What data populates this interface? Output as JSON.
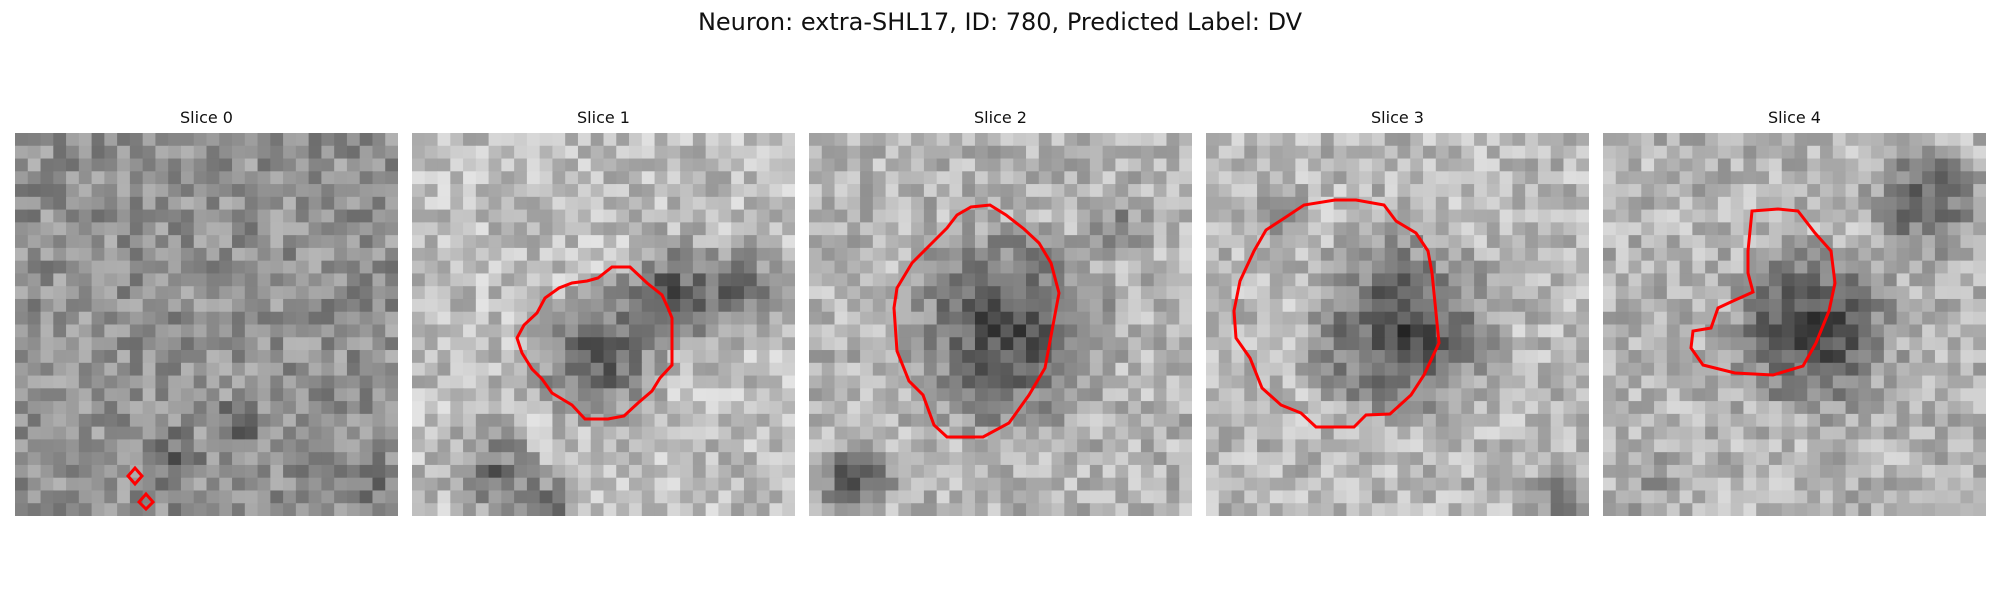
{
  "figure": {
    "title": "Neuron: extra-SHL17, ID: 780, Predicted Label: DV"
  },
  "panels": [
    {
      "title": "Slice 0"
    },
    {
      "title": "Slice 1"
    },
    {
      "title": "Slice 2"
    },
    {
      "title": "Slice 3"
    },
    {
      "title": "Slice 4"
    }
  ],
  "colors": {
    "contour": "#ff0000",
    "background": "#ffffff",
    "text": "#111111"
  }
}
